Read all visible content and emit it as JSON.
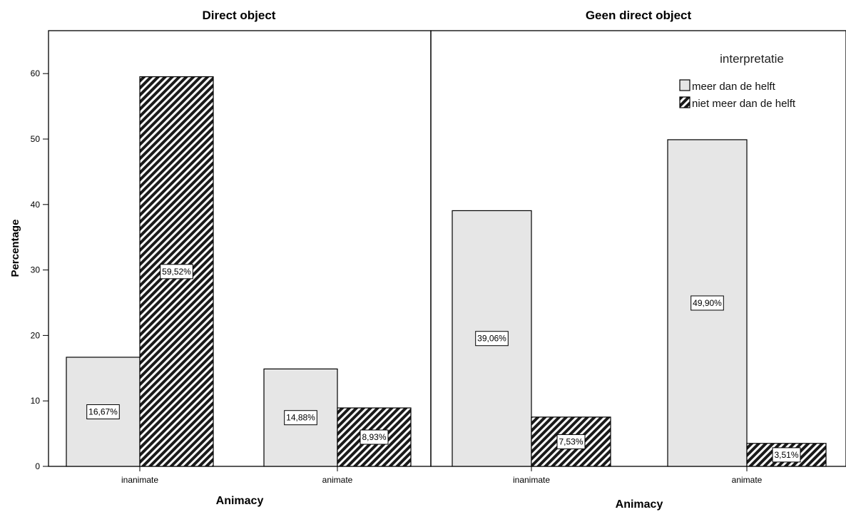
{
  "legend": {
    "title": "interpretatie",
    "entries": [
      {
        "name": "meer dan de helft",
        "fill": "light"
      },
      {
        "name": "niet meer dan de helft",
        "fill": "hatched"
      }
    ]
  },
  "colors": {
    "light_fill": "#e6e6e6",
    "hatch_dark": "#1a1a1a",
    "outline": "#000000"
  },
  "ylabel": "Percentage",
  "chart_data": [
    {
      "type": "bar",
      "title": "Direct object",
      "xlabel": "Animacy",
      "ylabel": "Percentage",
      "categories": [
        "inanimate",
        "animate"
      ],
      "ylim": [
        0,
        66
      ],
      "yticks": [
        0,
        10,
        20,
        30,
        40,
        50,
        60
      ],
      "series": [
        {
          "name": "meer dan de helft",
          "values": [
            16.67,
            14.88
          ],
          "labels": [
            "16,67%",
            "14,88%"
          ]
        },
        {
          "name": "niet meer dan de helft",
          "values": [
            59.52,
            8.93
          ],
          "labels": [
            "59,52%",
            "8,93%"
          ]
        }
      ],
      "grid": false,
      "legend": "none"
    },
    {
      "type": "bar",
      "title": "Geen direct object",
      "xlabel": "Animacy",
      "categories": [
        "inanimate",
        "animate"
      ],
      "ylim": [
        0,
        66
      ],
      "series": [
        {
          "name": "meer dan de helft",
          "values": [
            39.06,
            49.9
          ],
          "labels": [
            "39,06%",
            "49,90%"
          ]
        },
        {
          "name": "niet meer dan de helft",
          "values": [
            7.53,
            3.51
          ],
          "labels": [
            "7,53%",
            "3,51%"
          ]
        }
      ],
      "grid": false,
      "legend": "top-right"
    }
  ]
}
